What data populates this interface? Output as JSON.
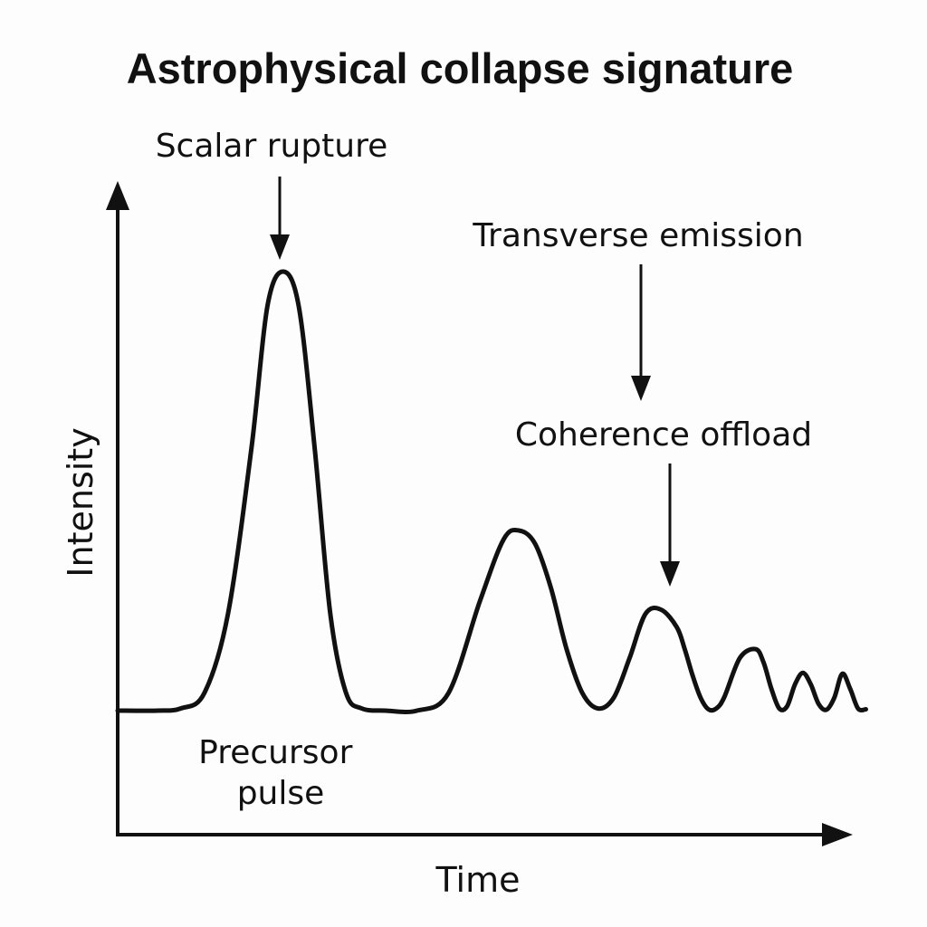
{
  "chart_data": {
    "type": "line",
    "title": "Astrophysical collapse signature",
    "xlabel": "Time",
    "ylabel": "Intensity",
    "xlim": [
      0,
      100
    ],
    "ylim": [
      0,
      100
    ],
    "grid": false,
    "series": [
      {
        "x": [
          0,
          5,
          8,
          11,
          14,
          17,
          19,
          21,
          23,
          25,
          27,
          29,
          31,
          34,
          38,
          42,
          46,
          49,
          51,
          53,
          55,
          57,
          59,
          61,
          63,
          65,
          67,
          69,
          71,
          72,
          73,
          74,
          75,
          76,
          77,
          79,
          81,
          82,
          83,
          84,
          85,
          86,
          87,
          88,
          89,
          90,
          91,
          92,
          93,
          94,
          95
        ],
        "values": [
          0,
          0,
          0.5,
          4,
          22,
          60,
          92,
          100,
          92,
          60,
          22,
          4,
          0.5,
          0,
          0,
          4,
          25,
          39,
          41,
          38,
          28,
          14,
          4,
          0.5,
          3,
          12,
          22,
          23,
          19,
          14,
          8,
          3,
          0.3,
          0.5,
          3,
          12,
          14,
          11,
          5,
          0.5,
          1,
          6,
          8.6,
          6,
          1.5,
          0.2,
          3,
          8.4,
          5,
          0.5,
          0.3
        ]
      }
    ],
    "annotations": [
      {
        "label": "Scalar rupture",
        "x": 21,
        "y": 100
      },
      {
        "label": "Transverse emission",
        "x": 69,
        "y": 23
      },
      {
        "label": "Coherence offload",
        "x": 72,
        "y": 23
      },
      {
        "label_lines": [
          "Precursor",
          "pulse"
        ],
        "x": 5,
        "y": 0
      }
    ]
  }
}
